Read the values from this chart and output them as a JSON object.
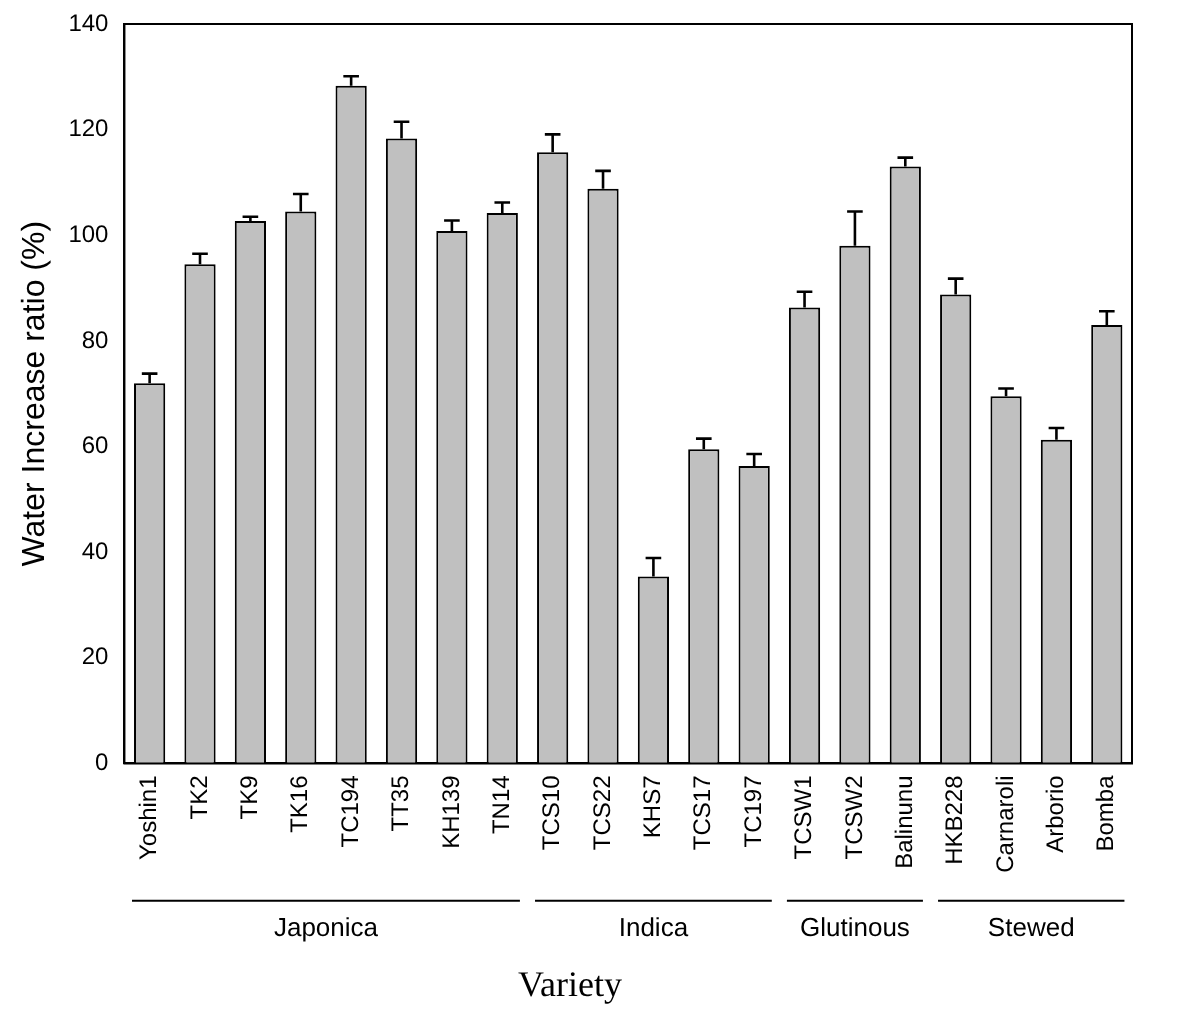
{
  "chart_data": {
    "type": "bar",
    "xlabel": "Variety",
    "ylabel": "Water Increase ratio (%)",
    "categories": [
      "Yoshin1",
      "TK2",
      "TK9",
      "TK16",
      "TC194",
      "TT35",
      "KH139",
      "TN14",
      "TCS10",
      "TCS22",
      "KHS7",
      "TCS17",
      "TC197",
      "TCSW1",
      "TCSW2",
      "Balinunu",
      "HKB228",
      "Carnaroli",
      "Arborio",
      "Bomba"
    ],
    "values": [
      72,
      94.5,
      102.7,
      104.5,
      128.3,
      118.3,
      100.8,
      104.2,
      115.7,
      108.8,
      35.4,
      59.5,
      56.3,
      86.3,
      98,
      113,
      88.8,
      69.5,
      61.3,
      83
    ],
    "errors": [
      [
        72,
        73.8
      ],
      [
        94.5,
        96.5
      ],
      [
        102.7,
        103.5
      ],
      [
        104.5,
        107.8
      ],
      [
        128.3,
        130.1
      ],
      [
        118.3,
        121.5
      ],
      [
        100.8,
        102.8
      ],
      [
        104.2,
        106.2
      ],
      [
        115.7,
        119.1
      ],
      [
        108.8,
        112.2
      ],
      [
        35.4,
        38.9
      ],
      [
        59.5,
        61.5
      ],
      [
        56.3,
        58.6
      ],
      [
        86.3,
        89.3
      ],
      [
        98,
        104.5
      ],
      [
        113,
        114.7
      ],
      [
        88.8,
        91.8
      ],
      [
        69.5,
        71
      ],
      [
        61.3,
        63.5
      ],
      [
        83,
        85.6
      ]
    ],
    "color": "#c0c0c0",
    "ylim": [
      0,
      140
    ],
    "yticks": [
      0,
      20,
      40,
      60,
      80,
      100,
      120,
      140
    ],
    "grid": false,
    "legend": false,
    "annotations": [
      "Japonica",
      "Indica",
      "Glutinous",
      "Stewed"
    ]
  }
}
